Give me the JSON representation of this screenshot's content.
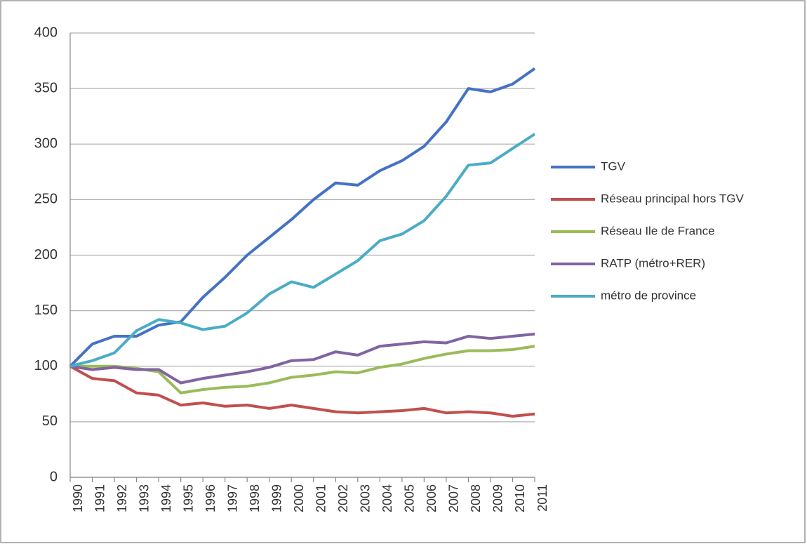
{
  "chart_data": {
    "type": "line",
    "categories": [
      "1990",
      "1991",
      "1992",
      "1993",
      "1994",
      "1995",
      "1996",
      "1997",
      "1998",
      "1999",
      "2000",
      "2001",
      "2002",
      "2003",
      "2004",
      "2005",
      "2006",
      "2007",
      "2008",
      "2009",
      "2010",
      "2011"
    ],
    "series": [
      {
        "name": "TGV",
        "color": "#4472c4",
        "values": [
          100,
          120,
          127,
          127,
          137,
          140,
          162,
          180,
          200,
          216,
          232,
          250,
          265,
          263,
          276,
          285,
          298,
          320,
          350,
          347,
          354,
          368
        ]
      },
      {
        "name": "Réseau principal hors TGV",
        "color": "#c0504d",
        "values": [
          100,
          89,
          87,
          76,
          74,
          65,
          67,
          64,
          65,
          62,
          65,
          62,
          59,
          58,
          59,
          60,
          62,
          58,
          59,
          58,
          55,
          57
        ]
      },
      {
        "name": "Réseau Ile de France",
        "color": "#9bbb59",
        "values": [
          100,
          100,
          100,
          98,
          95,
          76,
          79,
          81,
          82,
          85,
          90,
          92,
          95,
          94,
          99,
          102,
          107,
          111,
          114,
          114,
          115,
          118
        ]
      },
      {
        "name": "RATP (métro+RER)",
        "color": "#8064a2",
        "values": [
          100,
          97,
          99,
          97,
          97,
          85,
          89,
          92,
          95,
          99,
          105,
          106,
          113,
          110,
          118,
          120,
          122,
          121,
          127,
          125,
          127,
          129
        ]
      },
      {
        "name": "métro de province",
        "color": "#4bacc6",
        "values": [
          100,
          105,
          112,
          132,
          142,
          139,
          133,
          136,
          148,
          165,
          176,
          171,
          183,
          195,
          213,
          219,
          231,
          253,
          281,
          283,
          296,
          309
        ]
      }
    ],
    "ylim": [
      0,
      400
    ],
    "yticks": [
      0,
      50,
      100,
      150,
      200,
      250,
      300,
      350,
      400
    ],
    "grid": true,
    "legend": "right"
  }
}
